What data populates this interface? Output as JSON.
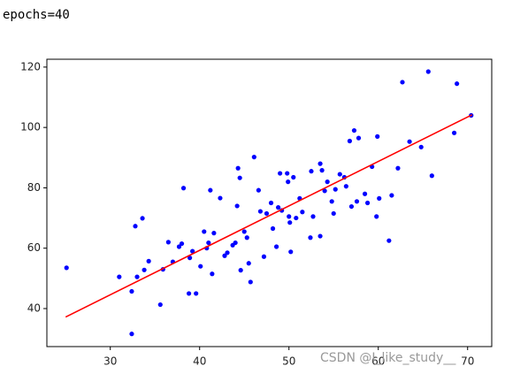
{
  "output_text": "epochs=40",
  "watermark": "CSDN @I_like_study__",
  "chart_data": {
    "type": "scatter",
    "xlim": [
      22.9,
      72.7
    ],
    "ylim": [
      27.4,
      122.6
    ],
    "xticks": [
      30,
      40,
      50,
      60,
      70
    ],
    "yticks": [
      40,
      60,
      80,
      100,
      120
    ],
    "grid": false,
    "series": [
      {
        "style": "markers",
        "color": "#0000ff",
        "x": [
          25.1,
          32.4,
          31.0,
          32.4,
          32.8,
          33.0,
          33.6,
          33.8,
          34.3,
          35.6,
          35.9,
          36.5,
          37.0,
          37.7,
          38.0,
          38.2,
          38.8,
          38.9,
          39.2,
          39.6,
          40.1,
          40.5,
          40.8,
          41.0,
          41.2,
          41.4,
          41.6,
          42.3,
          42.8,
          43.1,
          43.7,
          44.0,
          44.2,
          44.3,
          44.5,
          44.6,
          45.0,
          45.3,
          45.5,
          45.7,
          46.1,
          46.6,
          46.8,
          47.2,
          47.5,
          48.0,
          48.2,
          48.8,
          48.6,
          49.0,
          49.2,
          49.8,
          49.9,
          50.0,
          50.1,
          50.2,
          50.5,
          50.8,
          51.2,
          51.5,
          52.5,
          52.4,
          52.7,
          53.5,
          53.7,
          53.5,
          54.0,
          54.3,
          54.8,
          55.0,
          55.2,
          55.7,
          56.2,
          56.4,
          56.8,
          57.0,
          57.3,
          57.6,
          57.8,
          58.5,
          58.8,
          59.3,
          59.8,
          59.9,
          60.1,
          61.2,
          61.5,
          62.2,
          62.7,
          63.5,
          64.8,
          65.6,
          66.0,
          68.5,
          68.8,
          70.4
        ],
        "values": [
          53.5,
          31.6,
          50.5,
          45.7,
          67.3,
          50.5,
          69.9,
          52.8,
          55.7,
          41.3,
          53.0,
          62.0,
          55.5,
          60.5,
          61.5,
          79.9,
          45.0,
          56.8,
          59.0,
          45.0,
          54.0,
          65.5,
          60.0,
          61.8,
          79.2,
          51.5,
          65.0,
          76.6,
          57.5,
          58.5,
          61.0,
          61.8,
          74.0,
          86.5,
          83.3,
          52.7,
          65.5,
          63.5,
          55.0,
          48.8,
          90.2,
          79.2,
          72.2,
          57.2,
          71.5,
          75.0,
          66.5,
          73.5,
          60.5,
          84.8,
          72.5,
          84.8,
          82.0,
          70.5,
          68.5,
          58.8,
          83.5,
          70.0,
          76.5,
          72.0,
          85.5,
          63.5,
          70.5,
          88.0,
          85.8,
          64.0,
          79.0,
          82.0,
          75.5,
          71.5,
          79.5,
          84.5,
          83.5,
          80.5,
          95.5,
          73.8,
          99.0,
          75.5,
          96.5,
          78.0,
          75.0,
          87.0,
          70.5,
          97.0,
          76.5,
          62.5,
          77.5,
          86.5,
          115.0,
          95.3,
          93.5,
          118.5,
          84.0,
          98.2,
          114.5,
          104.0
        ]
      },
      {
        "style": "line",
        "color": "#ff0000",
        "x": [
          25.0,
          70.5
        ],
        "values": [
          37.2,
          104.2
        ]
      }
    ]
  }
}
